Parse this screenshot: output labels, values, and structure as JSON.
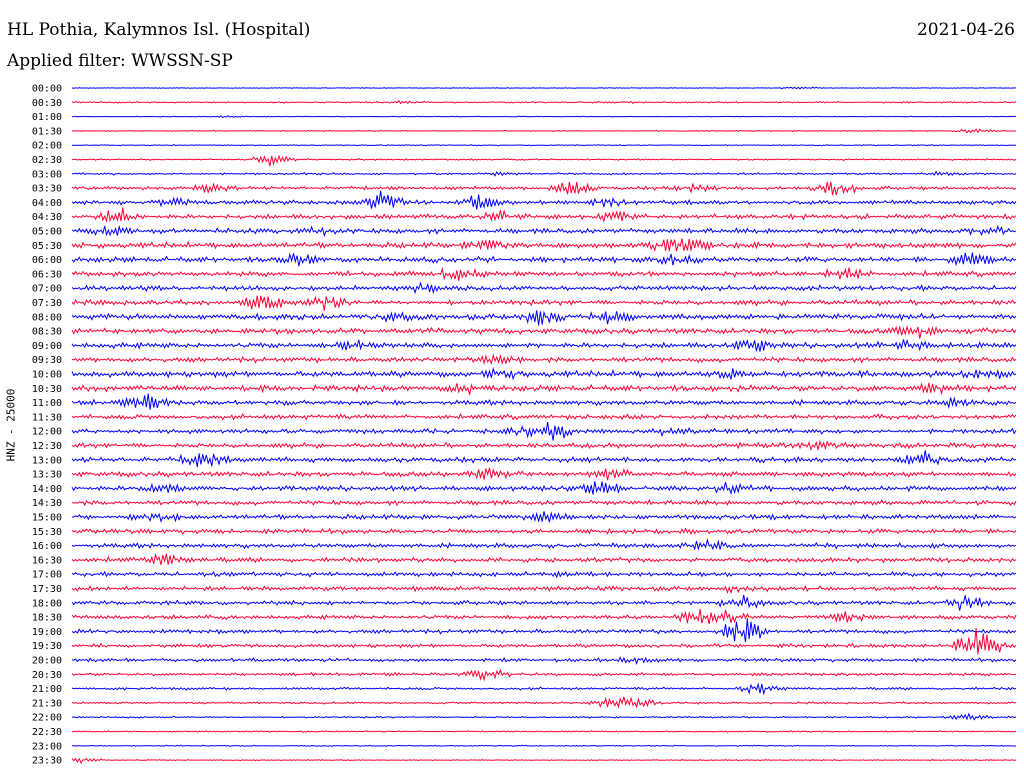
{
  "header": {
    "station": "HL Pothia, Kalymnos Isl. (Hospital)",
    "filter": "Applied filter: WWSSN-SP",
    "date": "2021-04-26"
  },
  "chart_data": {
    "type": "line",
    "ylabel": "HNZ - 25000",
    "colors": {
      "even_trace": "#0000ff",
      "odd_trace": "#ff0033"
    },
    "rows": [
      {
        "label": "00:00",
        "amp": 0.4,
        "events": [
          [
            77,
            1.5
          ]
        ]
      },
      {
        "label": "00:30",
        "amp": 0.8,
        "events": [
          [
            35,
            1.2
          ],
          [
            58,
            1.0
          ]
        ]
      },
      {
        "label": "01:00",
        "amp": 0.4,
        "events": [
          [
            16,
            1.0
          ]
        ]
      },
      {
        "label": "01:30",
        "amp": 0.6,
        "events": [
          [
            96,
            3.0
          ]
        ]
      },
      {
        "label": "02:00",
        "amp": 0.6,
        "events": []
      },
      {
        "label": "02:30",
        "amp": 0.9,
        "events": [
          [
            21,
            7.0
          ]
        ]
      },
      {
        "label": "03:00",
        "amp": 1.2,
        "events": [
          [
            45,
            1.5
          ],
          [
            92,
            1.5
          ]
        ]
      },
      {
        "label": "03:30",
        "amp": 2.0,
        "events": [
          [
            15,
            5.0
          ],
          [
            53,
            9.0
          ],
          [
            66,
            5.0
          ],
          [
            81,
            12.0
          ]
        ]
      },
      {
        "label": "04:00",
        "amp": 2.5,
        "events": [
          [
            11,
            4.0
          ],
          [
            33,
            12.0
          ],
          [
            43,
            8.0
          ],
          [
            57,
            5.0
          ]
        ]
      },
      {
        "label": "04:30",
        "amp": 2.8,
        "events": [
          [
            5,
            10.0
          ],
          [
            46,
            6.0
          ],
          [
            58,
            6.0
          ]
        ]
      },
      {
        "label": "05:00",
        "amp": 3.0,
        "events": [
          [
            4,
            6.0
          ],
          [
            26,
            4.0
          ],
          [
            97,
            4.0
          ]
        ]
      },
      {
        "label": "05:30",
        "amp": 3.2,
        "events": [
          [
            44,
            6.0
          ],
          [
            63,
            8.0
          ],
          [
            66,
            6.0
          ]
        ]
      },
      {
        "label": "06:00",
        "amp": 3.2,
        "events": [
          [
            24,
            6.0
          ],
          [
            64,
            5.0
          ],
          [
            95,
            8.0
          ]
        ]
      },
      {
        "label": "06:30",
        "amp": 3.0,
        "events": [
          [
            41,
            8.0
          ],
          [
            82,
            7.0
          ]
        ]
      },
      {
        "label": "07:00",
        "amp": 3.0,
        "events": [
          [
            37,
            5.0
          ]
        ]
      },
      {
        "label": "07:30",
        "amp": 3.0,
        "events": [
          [
            20,
            10.0
          ],
          [
            27,
            7.0
          ]
        ]
      },
      {
        "label": "08:00",
        "amp": 3.2,
        "events": [
          [
            35,
            4.0
          ],
          [
            50,
            9.0
          ],
          [
            57,
            6.0
          ]
        ]
      },
      {
        "label": "08:30",
        "amp": 3.2,
        "events": [
          [
            89,
            8.0
          ]
        ]
      },
      {
        "label": "09:00",
        "amp": 3.2,
        "events": [
          [
            30,
            6.0
          ],
          [
            72,
            8.0
          ],
          [
            88,
            6.0
          ]
        ]
      },
      {
        "label": "09:30",
        "amp": 3.0,
        "events": [
          [
            45,
            6.0
          ]
        ]
      },
      {
        "label": "10:00",
        "amp": 3.5,
        "events": [
          [
            45,
            5.0
          ],
          [
            70,
            5.0
          ],
          [
            97,
            4.0
          ]
        ]
      },
      {
        "label": "10:30",
        "amp": 3.5,
        "events": [
          [
            42,
            6.0
          ],
          [
            91,
            5.0
          ]
        ]
      },
      {
        "label": "11:00",
        "amp": 3.0,
        "events": [
          [
            8,
            8.0
          ],
          [
            93,
            4.0
          ]
        ]
      },
      {
        "label": "11:30",
        "amp": 2.8,
        "events": []
      },
      {
        "label": "12:00",
        "amp": 2.8,
        "events": [
          [
            48,
            7.0
          ],
          [
            51,
            9.0
          ],
          [
            63,
            5.0
          ]
        ]
      },
      {
        "label": "12:30",
        "amp": 2.8,
        "events": [
          [
            79,
            5.0
          ]
        ]
      },
      {
        "label": "13:00",
        "amp": 3.0,
        "events": [
          [
            14,
            11.0
          ],
          [
            90,
            9.0
          ]
        ]
      },
      {
        "label": "13:30",
        "amp": 3.0,
        "events": [
          [
            44,
            6.0
          ],
          [
            57,
            5.0
          ]
        ]
      },
      {
        "label": "14:00",
        "amp": 3.0,
        "events": [
          [
            10,
            5.0
          ],
          [
            56,
            11.0
          ],
          [
            70,
            5.0
          ]
        ]
      },
      {
        "label": "14:30",
        "amp": 2.8,
        "events": []
      },
      {
        "label": "15:00",
        "amp": 2.8,
        "events": [
          [
            9,
            4.0
          ],
          [
            50,
            6.0
          ]
        ]
      },
      {
        "label": "15:30",
        "amp": 2.8,
        "events": []
      },
      {
        "label": "16:00",
        "amp": 2.8,
        "events": [
          [
            67,
            6.0
          ]
        ]
      },
      {
        "label": "16:30",
        "amp": 2.8,
        "events": [
          [
            10,
            7.0
          ]
        ]
      },
      {
        "label": "17:00",
        "amp": 2.6,
        "events": [
          [
            53,
            3.0
          ]
        ]
      },
      {
        "label": "17:30",
        "amp": 2.6,
        "events": [
          [
            71,
            4.0
          ]
        ]
      },
      {
        "label": "18:00",
        "amp": 2.4,
        "events": [
          [
            71,
            8.0
          ],
          [
            95,
            10.0
          ]
        ]
      },
      {
        "label": "18:30",
        "amp": 2.4,
        "events": [
          [
            66,
            9.0
          ],
          [
            69,
            10.0
          ],
          [
            82,
            6.0
          ]
        ]
      },
      {
        "label": "19:00",
        "amp": 2.4,
        "events": [
          [
            71,
            20.0
          ]
        ]
      },
      {
        "label": "19:30",
        "amp": 2.2,
        "events": [
          [
            96,
            26.0
          ]
        ]
      },
      {
        "label": "20:00",
        "amp": 2.0,
        "events": [
          [
            60,
            3.0
          ]
        ]
      },
      {
        "label": "20:30",
        "amp": 1.8,
        "events": [
          [
            44,
            7.0
          ]
        ]
      },
      {
        "label": "21:00",
        "amp": 1.5,
        "events": [
          [
            73,
            6.0
          ]
        ]
      },
      {
        "label": "21:30",
        "amp": 1.2,
        "events": [
          [
            57,
            7.0
          ],
          [
            60,
            5.0
          ]
        ]
      },
      {
        "label": "22:00",
        "amp": 0.9,
        "events": [
          [
            95,
            4.0
          ]
        ]
      },
      {
        "label": "22:30",
        "amp": 0.8,
        "events": []
      },
      {
        "label": "23:00",
        "amp": 0.6,
        "events": []
      },
      {
        "label": "23:30",
        "amp": 0.6,
        "events": [
          [
            1,
            3.0
          ]
        ]
      }
    ]
  }
}
